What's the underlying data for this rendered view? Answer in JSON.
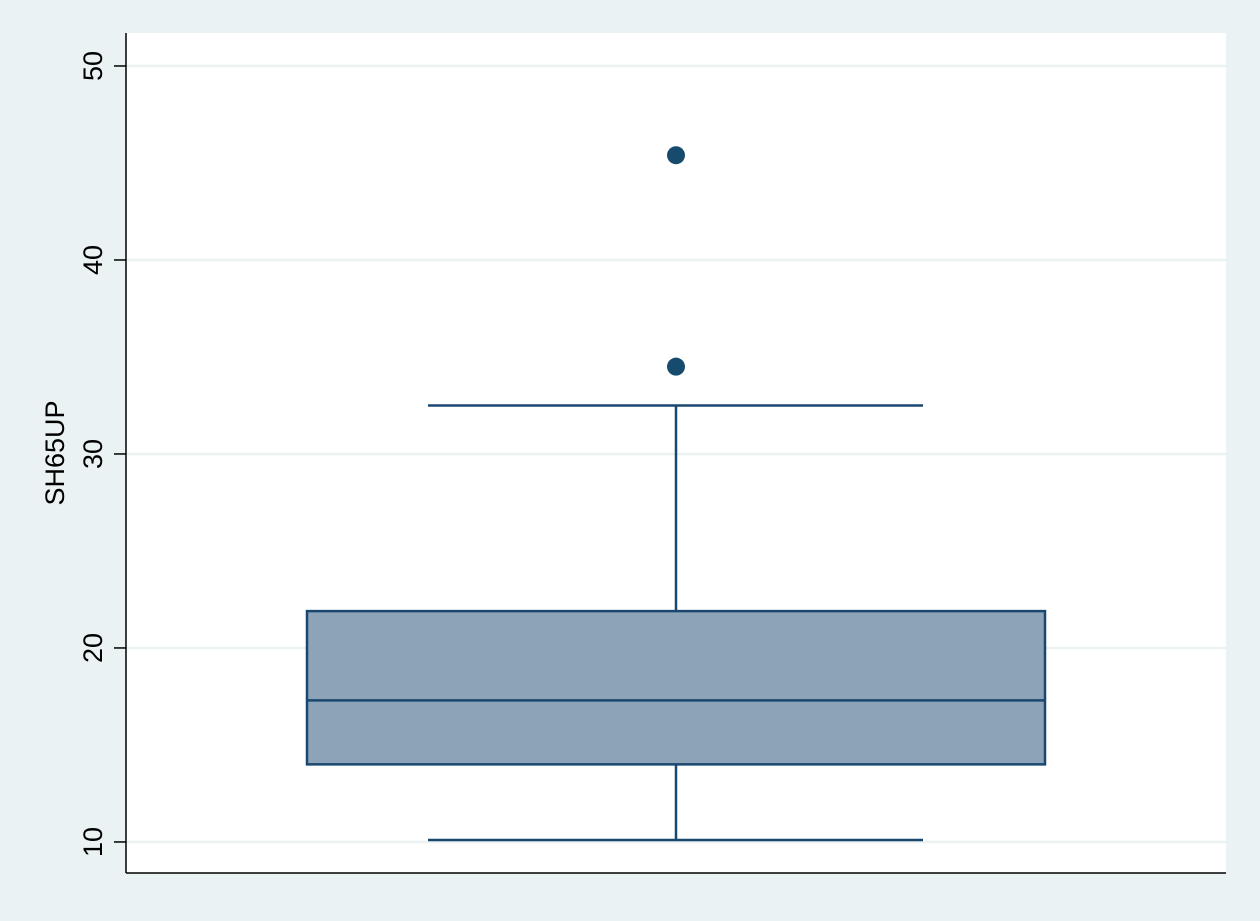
{
  "chart_data": {
    "type": "box",
    "title": "",
    "xlabel": "",
    "ylabel": "SH65UP",
    "ylim": [
      8.4,
      51.7
    ],
    "yticks": [
      10,
      20,
      30,
      40,
      50
    ],
    "grid": true,
    "box": {
      "whisker_low": 10.1,
      "q1": 14.0,
      "median": 17.3,
      "q3": 21.9,
      "whisker_high": 32.5
    },
    "outliers": [
      34.5,
      45.4
    ],
    "colors": {
      "background": "#eaf2f3",
      "plot_area": "#ffffff",
      "box_fill": "#8ca3b8",
      "line": "#1a476f",
      "marker": "#164b6e",
      "grid": "#eaf2f3",
      "axis": "#000000"
    }
  }
}
